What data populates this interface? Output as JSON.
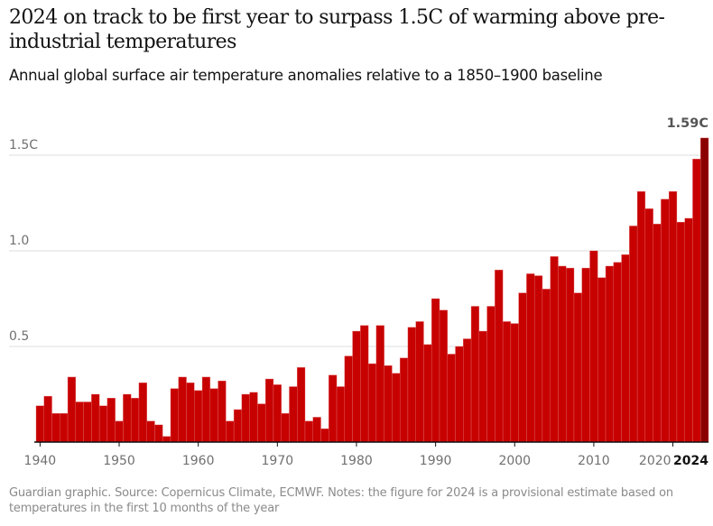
{
  "chart_data": {
    "type": "bar",
    "title": "2024 on track to be first year to surpass 1.5C of warming above pre-industrial temperatures",
    "subtitle": "Annual global surface air temperature anomalies relative to a 1850–1900 baseline",
    "years": [
      1940,
      1941,
      1942,
      1943,
      1944,
      1945,
      1946,
      1947,
      1948,
      1949,
      1950,
      1951,
      1952,
      1953,
      1954,
      1955,
      1956,
      1957,
      1958,
      1959,
      1960,
      1961,
      1962,
      1963,
      1964,
      1965,
      1966,
      1967,
      1968,
      1969,
      1970,
      1971,
      1972,
      1973,
      1974,
      1975,
      1976,
      1977,
      1978,
      1979,
      1980,
      1981,
      1982,
      1983,
      1984,
      1985,
      1986,
      1987,
      1988,
      1989,
      1990,
      1991,
      1992,
      1993,
      1994,
      1995,
      1996,
      1997,
      1998,
      1999,
      2000,
      2001,
      2002,
      2003,
      2004,
      2005,
      2006,
      2007,
      2008,
      2009,
      2010,
      2011,
      2012,
      2013,
      2014,
      2015,
      2016,
      2017,
      2018,
      2019,
      2020,
      2021,
      2022,
      2023,
      2024
    ],
    "values": [
      0.19,
      0.24,
      0.15,
      0.15,
      0.34,
      0.21,
      0.21,
      0.25,
      0.19,
      0.23,
      0.11,
      0.25,
      0.23,
      0.31,
      0.11,
      0.09,
      0.03,
      0.28,
      0.34,
      0.31,
      0.27,
      0.34,
      0.28,
      0.32,
      0.11,
      0.17,
      0.25,
      0.26,
      0.2,
      0.33,
      0.3,
      0.15,
      0.29,
      0.39,
      0.11,
      0.13,
      0.07,
      0.35,
      0.29,
      0.45,
      0.58,
      0.61,
      0.41,
      0.61,
      0.4,
      0.36,
      0.44,
      0.6,
      0.63,
      0.51,
      0.75,
      0.69,
      0.46,
      0.5,
      0.54,
      0.71,
      0.58,
      0.71,
      0.9,
      0.63,
      0.62,
      0.78,
      0.88,
      0.87,
      0.8,
      0.97,
      0.92,
      0.91,
      0.78,
      0.91,
      1.0,
      0.86,
      0.92,
      0.94,
      0.98,
      1.13,
      1.31,
      1.22,
      1.14,
      1.27,
      1.31,
      1.15,
      1.17,
      1.48,
      1.59
    ],
    "highlight_year": 2024,
    "highlight_label": "1.59C",
    "y_ticks": [
      {
        "value": 0.5,
        "label": "0.5"
      },
      {
        "value": 1.0,
        "label": "1.0"
      },
      {
        "value": 1.5,
        "label": "1.5C"
      }
    ],
    "x_ticks": [
      "1940",
      "1950",
      "1960",
      "1970",
      "1980",
      "1990",
      "2000",
      "2010",
      "2020"
    ],
    "x_highlight_tick": "2024",
    "ylim": [
      0,
      1.65
    ],
    "grid": true,
    "colors": {
      "bar": "#c70000",
      "highlight": "#8b0000",
      "grid": "#dcdcdc",
      "axis": "#121212"
    }
  },
  "footer": "Guardian graphic. Source: Copernicus Climate, ECMWF. Notes: the figure for 2024 is a provisional estimate based on temperatures in the first 10 months of the year"
}
